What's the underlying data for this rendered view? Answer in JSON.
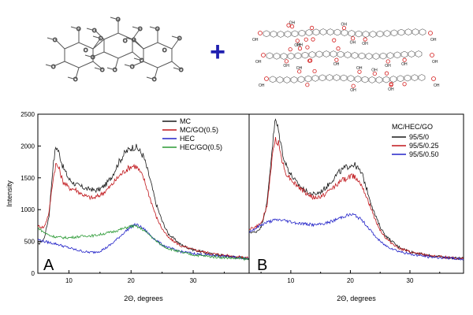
{
  "colors": {
    "black": "#1a1a1a",
    "red": "#c0161b",
    "blue": "#2323c8",
    "green": "#2b9a35",
    "plus": "#1f1fb0",
    "oxygen": "#d41c1c"
  },
  "schematic": {
    "operator": "+",
    "methoxy_label": "O",
    "hydroxyl_label": "OH"
  },
  "chart_data": [
    {
      "type": "line",
      "panel_label": "A",
      "xlabel": "2Θ, degrees",
      "ylabel": "Intensity",
      "xlim": [
        5,
        39
      ],
      "ylim": [
        0,
        2500
      ],
      "x_ticks": [
        10,
        20,
        30
      ],
      "y_ticks": [
        0,
        500,
        1000,
        1500,
        2000,
        2500
      ],
      "legend_title": "",
      "legend_position": "top-right",
      "grid": false,
      "series": [
        {
          "name": "MC",
          "color": "#1a1a1a",
          "points": [
            [
              5,
              450
            ],
            [
              6,
              540
            ],
            [
              6.8,
              900
            ],
            [
              7.4,
              1650
            ],
            [
              7.9,
              2000
            ],
            [
              8.4,
              1900
            ],
            [
              9,
              1680
            ],
            [
              10,
              1480
            ],
            [
              11,
              1400
            ],
            [
              12,
              1360
            ],
            [
              13,
              1320
            ],
            [
              13.5,
              1330
            ],
            [
              14,
              1300
            ],
            [
              15,
              1320
            ],
            [
              16,
              1400
            ],
            [
              17,
              1540
            ],
            [
              18,
              1740
            ],
            [
              19,
              1890
            ],
            [
              20,
              1970
            ],
            [
              20.5,
              1985
            ],
            [
              21,
              1970
            ],
            [
              22,
              1840
            ],
            [
              23,
              1500
            ],
            [
              24,
              1100
            ],
            [
              25,
              820
            ],
            [
              26,
              620
            ],
            [
              28,
              450
            ],
            [
              30,
              370
            ],
            [
              33,
              300
            ],
            [
              36,
              270
            ],
            [
              39,
              230
            ]
          ]
        },
        {
          "name": "MC/GO(0.5)",
          "color": "#c0161b",
          "points": [
            [
              5,
              740
            ],
            [
              6,
              720
            ],
            [
              6.8,
              950
            ],
            [
              7.4,
              1450
            ],
            [
              7.9,
              1720
            ],
            [
              8.4,
              1650
            ],
            [
              9,
              1450
            ],
            [
              10,
              1340
            ],
            [
              11,
              1320
            ],
            [
              12,
              1250
            ],
            [
              13,
              1200
            ],
            [
              14,
              1180
            ],
            [
              15,
              1230
            ],
            [
              16,
              1300
            ],
            [
              17,
              1400
            ],
            [
              18,
              1520
            ],
            [
              19,
              1610
            ],
            [
              20,
              1680
            ],
            [
              20.5,
              1690
            ],
            [
              21,
              1660
            ],
            [
              22,
              1500
            ],
            [
              23,
              1200
            ],
            [
              24,
              900
            ],
            [
              25,
              700
            ],
            [
              26,
              560
            ],
            [
              28,
              430
            ],
            [
              30,
              370
            ],
            [
              33,
              310
            ],
            [
              36,
              270
            ],
            [
              39,
              240
            ]
          ]
        },
        {
          "name": "HEC",
          "color": "#2323c8",
          "points": [
            [
              5,
              530
            ],
            [
              6,
              500
            ],
            [
              7,
              480
            ],
            [
              8,
              460
            ],
            [
              9,
              430
            ],
            [
              10,
              400
            ],
            [
              11,
              370
            ],
            [
              12,
              350
            ],
            [
              13,
              330
            ],
            [
              14,
              330
            ],
            [
              15,
              350
            ],
            [
              16,
              400
            ],
            [
              17,
              470
            ],
            [
              18,
              560
            ],
            [
              19,
              650
            ],
            [
              20,
              730
            ],
            [
              20.5,
              760
            ],
            [
              21,
              760
            ],
            [
              22,
              700
            ],
            [
              23,
              610
            ],
            [
              24,
              520
            ],
            [
              25,
              450
            ],
            [
              26,
              400
            ],
            [
              28,
              340
            ],
            [
              30,
              310
            ],
            [
              33,
              280
            ],
            [
              36,
              255
            ],
            [
              39,
              230
            ]
          ]
        },
        {
          "name": "HEC/GO(0.5)",
          "color": "#2b9a35",
          "points": [
            [
              5,
              720
            ],
            [
              6,
              640
            ],
            [
              7,
              590
            ],
            [
              8,
              570
            ],
            [
              9,
              560
            ],
            [
              10,
              560
            ],
            [
              11,
              570
            ],
            [
              12,
              580
            ],
            [
              13,
              590
            ],
            [
              14,
              590
            ],
            [
              15,
              610
            ],
            [
              16,
              630
            ],
            [
              17,
              650
            ],
            [
              18,
              680
            ],
            [
              19,
              710
            ],
            [
              20,
              740
            ],
            [
              20.5,
              740
            ],
            [
              21,
              730
            ],
            [
              22,
              680
            ],
            [
              23,
              600
            ],
            [
              24,
              510
            ],
            [
              25,
              440
            ],
            [
              26,
              390
            ],
            [
              28,
              330
            ],
            [
              30,
              290
            ],
            [
              33,
              260
            ],
            [
              36,
              240
            ],
            [
              39,
              220
            ]
          ]
        }
      ]
    },
    {
      "type": "line",
      "panel_label": "B",
      "xlabel": "2Θ, degrees",
      "ylabel": "",
      "xlim": [
        3,
        39
      ],
      "ylim": [
        0,
        2500
      ],
      "x_ticks": [
        10,
        20,
        30
      ],
      "y_ticks": [],
      "legend_title": "MC/HEC/GO",
      "legend_position": "top-right",
      "grid": false,
      "series": [
        {
          "name": "95/5/0",
          "color": "#1a1a1a",
          "points": [
            [
              3,
              650
            ],
            [
              4,
              640
            ],
            [
              5,
              720
            ],
            [
              6,
              1100
            ],
            [
              6.8,
              1900
            ],
            [
              7.4,
              2420
            ],
            [
              7.9,
              2250
            ],
            [
              8.5,
              1950
            ],
            [
              9,
              1750
            ],
            [
              10,
              1550
            ],
            [
              11,
              1420
            ],
            [
              12,
              1330
            ],
            [
              13,
              1260
            ],
            [
              14,
              1240
            ],
            [
              15,
              1280
            ],
            [
              16,
              1360
            ],
            [
              17,
              1470
            ],
            [
              18,
              1580
            ],
            [
              19,
              1650
            ],
            [
              20,
              1700
            ],
            [
              20.5,
              1710
            ],
            [
              21,
              1680
            ],
            [
              22,
              1550
            ],
            [
              23,
              1250
            ],
            [
              24,
              950
            ],
            [
              25,
              730
            ],
            [
              26,
              580
            ],
            [
              28,
              420
            ],
            [
              30,
              340
            ],
            [
              33,
              280
            ],
            [
              36,
              250
            ],
            [
              39,
              230
            ]
          ]
        },
        {
          "name": "95/5/0.25",
          "color": "#c0161b",
          "points": [
            [
              3,
              700
            ],
            [
              4,
              720
            ],
            [
              5,
              780
            ],
            [
              6,
              1050
            ],
            [
              6.8,
              1750
            ],
            [
              7.4,
              2120
            ],
            [
              7.9,
              2050
            ],
            [
              8.5,
              1800
            ],
            [
              9,
              1600
            ],
            [
              10,
              1480
            ],
            [
              11,
              1380
            ],
            [
              12,
              1300
            ],
            [
              13,
              1230
            ],
            [
              14,
              1180
            ],
            [
              15,
              1200
            ],
            [
              16,
              1260
            ],
            [
              17,
              1340
            ],
            [
              18,
              1420
            ],
            [
              19,
              1480
            ],
            [
              20,
              1520
            ],
            [
              20.5,
              1530
            ],
            [
              21,
              1500
            ],
            [
              22,
              1380
            ],
            [
              23,
              1130
            ],
            [
              24,
              880
            ],
            [
              25,
              680
            ],
            [
              26,
              540
            ],
            [
              28,
              400
            ],
            [
              30,
              330
            ],
            [
              33,
              280
            ],
            [
              36,
              250
            ],
            [
              39,
              230
            ]
          ]
        },
        {
          "name": "95/5/0.50",
          "color": "#2323c8",
          "points": [
            [
              3,
              650
            ],
            [
              4,
              700
            ],
            [
              5,
              760
            ],
            [
              6,
              800
            ],
            [
              7,
              830
            ],
            [
              8,
              840
            ],
            [
              9,
              830
            ],
            [
              10,
              810
            ],
            [
              11,
              790
            ],
            [
              12,
              780
            ],
            [
              13,
              770
            ],
            [
              14,
              760
            ],
            [
              15,
              770
            ],
            [
              16,
              790
            ],
            [
              17,
              820
            ],
            [
              18,
              860
            ],
            [
              19,
              900
            ],
            [
              20,
              920
            ],
            [
              20.5,
              920
            ],
            [
              21,
              900
            ],
            [
              22,
              830
            ],
            [
              23,
              720
            ],
            [
              24,
              600
            ],
            [
              25,
              500
            ],
            [
              26,
              430
            ],
            [
              28,
              350
            ],
            [
              30,
              300
            ],
            [
              33,
              260
            ],
            [
              36,
              240
            ],
            [
              39,
              220
            ]
          ]
        }
      ]
    }
  ]
}
